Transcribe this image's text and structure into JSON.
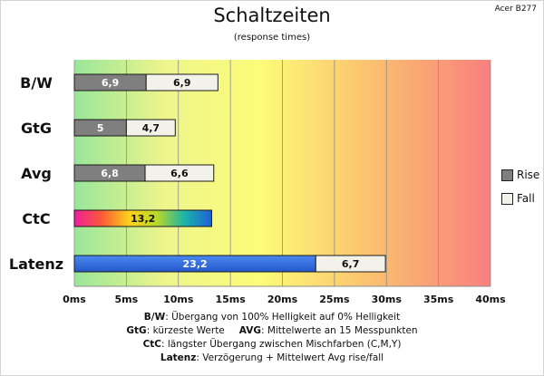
{
  "title": "Schaltzeiten",
  "subtitle": "(response times)",
  "model": "Acer B277",
  "legend": [
    {
      "label": "Rise",
      "color": "#7f7f7f"
    },
    {
      "label": "Fall",
      "color": "#f2f2ea"
    }
  ],
  "notes": {
    "bw_key": "B/W",
    "bw_text": ":  Übergang von 100% Helligkeit auf 0% Helligkeit",
    "gtg_key": "GtG",
    "gtg_text": ": kürzeste  Werte",
    "avg_key": "AVG",
    "avg_text": ": Mittelwerte  an 15 Messpunkten",
    "ctc_key": "CtC",
    "ctc_text": ": längster Übergang  zwischen Mischfarben  (C,M,Y)",
    "latenz_key": "Latenz",
    "latenz_text": ": Verzögerung  + Mittelwert  Avg rise/fall"
  },
  "chart_data": {
    "type": "bar",
    "orientation": "horizontal",
    "stacked": true,
    "categories": [
      "B/W",
      "GtG",
      "Avg",
      "CtC",
      "Latenz"
    ],
    "series": [
      {
        "name": "Rise",
        "values": [
          6.9,
          5,
          6.8,
          13.2,
          23.2
        ],
        "labels": [
          "6,9",
          "5",
          "6,8",
          "13,2",
          "23,2"
        ]
      },
      {
        "name": "Fall",
        "values": [
          6.9,
          4.7,
          6.6,
          null,
          6.7
        ],
        "labels": [
          "6,9",
          "4,7",
          "6,6",
          "",
          "6,7"
        ]
      }
    ],
    "bar_styles": {
      "CtC": "rainbow-gradient",
      "Latenz": "blue"
    },
    "xlim": [
      0,
      40
    ],
    "xticks": [
      0,
      5,
      10,
      15,
      20,
      25,
      30,
      35,
      40
    ],
    "xtick_labels": [
      "0ms",
      "5ms",
      "10ms",
      "15ms",
      "20ms",
      "25ms",
      "30ms",
      "35ms",
      "40ms"
    ],
    "background": "green-yellow-red gradient",
    "grid": true,
    "legend_position": "right"
  }
}
